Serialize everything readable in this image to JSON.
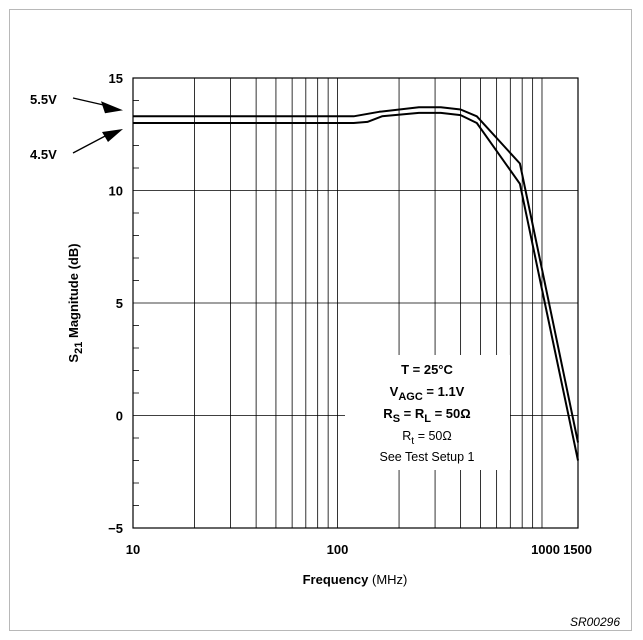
{
  "figure_id": "SR00296",
  "chart_data": {
    "type": "line",
    "xlabel": "Frequency",
    "xlabel_unit": "(MHz)",
    "ylabel_main": "S",
    "ylabel_sub": "21",
    "ylabel_rest": "Magnitude (dB)",
    "xscale": "log",
    "xlim": [
      10,
      1500
    ],
    "ylim": [
      -5,
      15
    ],
    "grid": true,
    "x_ticks": [
      {
        "value": 10,
        "label": "10"
      },
      {
        "value": 100,
        "label": "100"
      },
      {
        "value": 1000,
        "label": "1000"
      },
      {
        "value": 1500,
        "label": "1500"
      }
    ],
    "y_ticks": [
      {
        "value": 15,
        "label": "15"
      },
      {
        "value": 10,
        "label": "10"
      },
      {
        "value": 5,
        "label": "5"
      },
      {
        "value": 0,
        "label": "0"
      },
      {
        "value": -5,
        "label": "−5"
      }
    ],
    "series": [
      {
        "name": "5.5V",
        "points": [
          [
            10,
            13.3
          ],
          [
            120,
            13.3
          ],
          [
            160,
            13.5
          ],
          [
            250,
            13.7
          ],
          [
            320,
            13.7
          ],
          [
            400,
            13.6
          ],
          [
            480,
            13.3
          ],
          [
            780,
            11.2
          ],
          [
            1000,
            6.5
          ],
          [
            1500,
            -1.2
          ]
        ]
      },
      {
        "name": "4.5V",
        "points": [
          [
            10,
            13.0
          ],
          [
            120,
            13.0
          ],
          [
            140,
            13.05
          ],
          [
            165,
            13.3
          ],
          [
            250,
            13.45
          ],
          [
            320,
            13.45
          ],
          [
            400,
            13.35
          ],
          [
            480,
            13.0
          ],
          [
            780,
            10.3
          ],
          [
            1000,
            5.6
          ],
          [
            1500,
            -2.0
          ]
        ]
      }
    ],
    "annotations": {
      "conditions": {
        "temp": "T = 25°C",
        "vagc_v": "V",
        "vagc_sub": "AGC",
        "vagc_val": " = 1.1V",
        "rs_r1": "R",
        "rs_sub1": "S",
        "rs_mid": " = R",
        "rs_sub2": "L",
        "rs_val": " = 50Ω",
        "rt_r": "R",
        "rt_sub": "t",
        "rt_val": " = 50Ω",
        "setup": "See Test Setup 1"
      }
    },
    "style": {
      "line_color": "#000000",
      "grid_color": "#000000"
    }
  }
}
